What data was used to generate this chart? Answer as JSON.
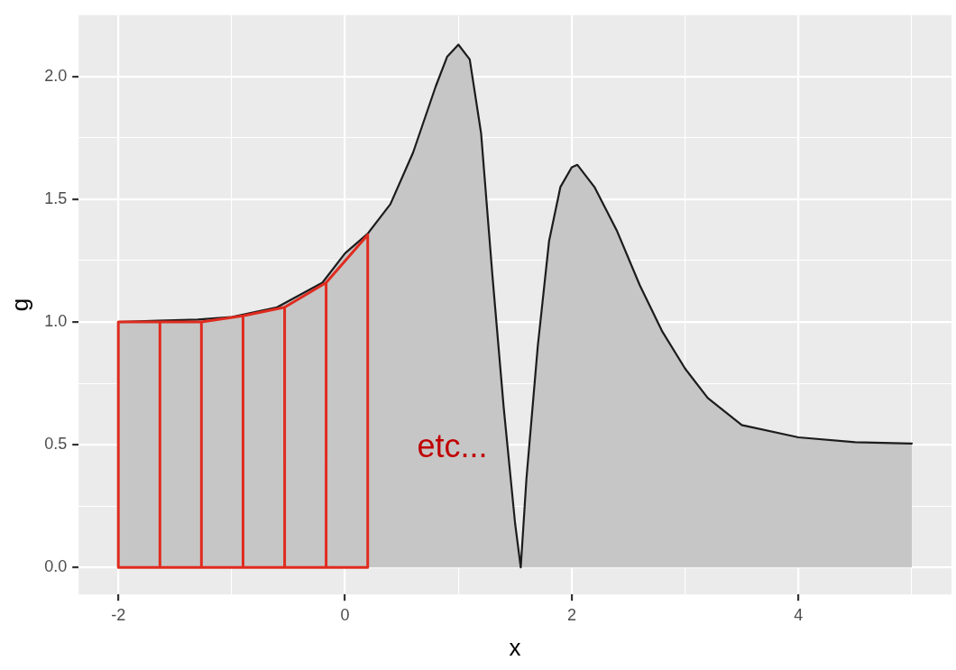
{
  "chart_data": {
    "type": "area",
    "xlabel": "x",
    "ylabel": "g",
    "series": [
      {
        "color": "#1c1c1c",
        "x": [
          -2,
          -1.65,
          -1.3,
          -1,
          -0.6,
          -0.2,
          0,
          0.2,
          0.4,
          0.6,
          0.8,
          0.9,
          1.0,
          1.1,
          1.2,
          1.3,
          1.4,
          1.5,
          1.55,
          1.6,
          1.7,
          1.8,
          1.9,
          2.0,
          2.05,
          2.2,
          2.4,
          2.6,
          2.8,
          3.0,
          3.2,
          3.5,
          4.0,
          4.5,
          5.0
        ],
        "values": [
          1.0,
          1.005,
          1.01,
          1.02,
          1.06,
          1.16,
          1.28,
          1.36,
          1.48,
          1.69,
          1.96,
          2.08,
          2.13,
          2.07,
          1.77,
          1.19,
          0.65,
          0.18,
          0,
          0.36,
          0.9,
          1.33,
          1.55,
          1.63,
          1.64,
          1.55,
          1.37,
          1.15,
          0.96,
          0.81,
          0.69,
          0.58,
          0.53,
          0.51,
          0.505
        ]
      },
      {
        "type": "line",
        "color": "#e02b1f",
        "x": [
          -2,
          -1.633,
          -1.267,
          -0.9,
          -0.533,
          -0.167,
          0.2,
          null,
          -2,
          0.2,
          null,
          -2,
          -2,
          null,
          -1.633,
          -1.633,
          null,
          -1.267,
          -1.267,
          null,
          -0.9,
          -0.9,
          null,
          -0.533,
          -0.533,
          null,
          -0.167,
          -0.167,
          null,
          0.2,
          0.2
        ],
        "values": [
          1.0,
          1.0,
          1.0,
          1.025,
          1.06,
          1.16,
          1.355,
          null,
          0,
          0,
          null,
          0,
          1.0,
          null,
          0,
          1.0,
          null,
          0,
          1.0,
          null,
          0,
          1.025,
          null,
          0,
          1.06,
          null,
          0,
          1.16,
          null,
          0,
          1.355
        ]
      }
    ],
    "xlim": [
      -2.35,
      5.35
    ],
    "xticks": [
      -2,
      {
        "value": -1,
        "label": null
      },
      0,
      {
        "value": 1,
        "label": null
      },
      2,
      {
        "value": 3,
        "label": null
      },
      4,
      {
        "value": 5,
        "label": null
      }
    ],
    "ylim": [
      -0.11,
      2.25
    ],
    "yticks": [
      {
        "value": 0,
        "label": "0.0"
      },
      {
        "value": 0.25,
        "label": null
      },
      0.5,
      {
        "value": 0.75,
        "label": null
      },
      {
        "value": 1,
        "label": "1.0"
      },
      {
        "value": 1.25,
        "label": null
      },
      1.5,
      {
        "value": 1.75,
        "label": null
      },
      {
        "value": 2,
        "label": "2.0"
      }
    ],
    "annotations": [
      "etc..."
    ],
    "grid": true,
    "legend": false
  }
}
